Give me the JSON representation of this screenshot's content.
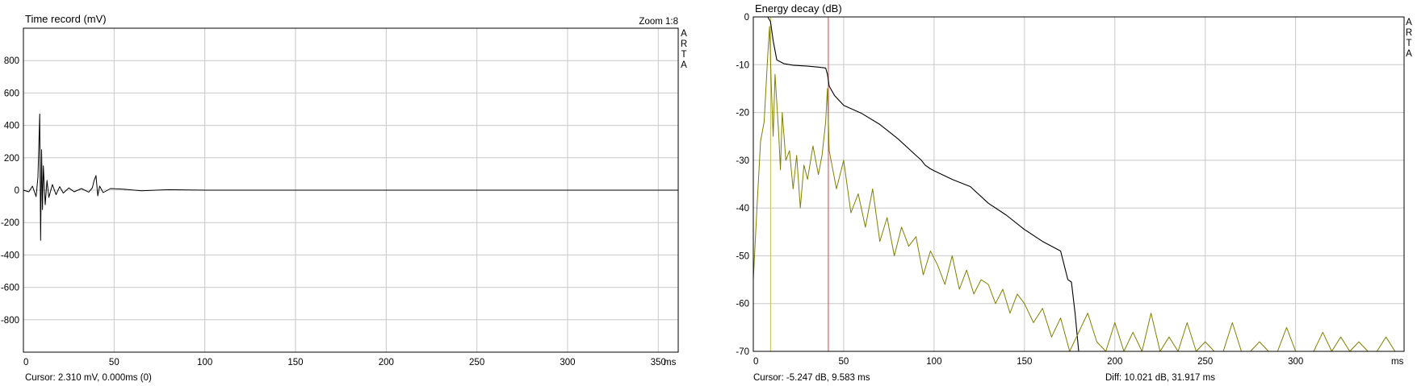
{
  "left": {
    "title": "Time record (mV)",
    "zoom": "Zoom 1:8",
    "brand": [
      "A",
      "R",
      "T",
      "A"
    ],
    "cursor": "Cursor: 2.310 mV, 0.000ms (0)",
    "x_unit": "ms",
    "colors": {
      "trace": "#000000",
      "grid": "#c8c8c8"
    }
  },
  "right": {
    "title": "Energy decay (dB)",
    "brand": [
      "A",
      "R",
      "T",
      "A"
    ],
    "cursor": "Cursor:  -5.247 dB,    9.583 ms",
    "diff": "Diff:   10.021 dB,    31.917 ms",
    "x_unit": "ms",
    "colors": {
      "decay": "#000000",
      "envelope": "#808000",
      "marker_start": "#c8c864",
      "marker_end": "#e06060",
      "grid": "#c8c8c8"
    }
  },
  "chart_data": [
    {
      "type": "line",
      "title": "Time record (mV)",
      "xlim": [
        0,
        361
      ],
      "ylim": [
        -1000,
        1000
      ],
      "x_ticks": [
        0,
        50,
        100,
        150,
        200,
        250,
        300,
        350
      ],
      "y_ticks": [
        800,
        600,
        400,
        200,
        0,
        -200,
        -400,
        -600,
        -800
      ],
      "grid": true,
      "series": [
        {
          "x": [
            0,
            3,
            5,
            7,
            8,
            9,
            9.5,
            10,
            10.5,
            11,
            12,
            13,
            14,
            16,
            18,
            20,
            22,
            25,
            28,
            32,
            36,
            38,
            39,
            40,
            41,
            42,
            44,
            48,
            55,
            65,
            80,
            100,
            150,
            361
          ],
          "values": [
            0,
            -10,
            25,
            -40,
            80,
            470,
            -310,
            250,
            -120,
            150,
            -90,
            60,
            -45,
            35,
            -28,
            22,
            -18,
            14,
            -10,
            10,
            -12,
            15,
            60,
            90,
            -35,
            25,
            -15,
            10,
            6,
            -4,
            3,
            0,
            0,
            0
          ]
        }
      ]
    },
    {
      "type": "line",
      "title": "Energy decay (dB)",
      "xlim": [
        0,
        360
      ],
      "ylim": [
        -70,
        0
      ],
      "x_ticks": [
        0,
        50,
        100,
        150,
        200,
        250,
        300
      ],
      "y_ticks": [
        0,
        -10,
        -20,
        -30,
        -40,
        -50,
        -60,
        -70
      ],
      "grid": true,
      "markers_ms": [
        9.583,
        41.5
      ],
      "series": [
        {
          "name": "decay",
          "x": [
            0,
            8,
            9.5,
            11,
            13,
            17,
            22,
            30,
            36,
            40,
            41,
            42,
            45,
            50,
            60,
            70,
            80,
            90,
            93,
            95,
            98,
            100,
            110,
            120,
            130,
            140,
            150,
            160,
            170,
            172,
            174,
            176,
            178,
            180
          ],
          "values": [
            0,
            0,
            -1,
            -5,
            -9,
            -9.8,
            -10.1,
            -10.3,
            -10.5,
            -10.7,
            -12,
            -14.5,
            -16.5,
            -18.5,
            -20.2,
            -22.5,
            -25.5,
            -29,
            -30,
            -31,
            -31.8,
            -32.2,
            -34,
            -35.5,
            -39,
            -41.5,
            -44.5,
            -47,
            -49,
            -52,
            -55,
            -55.5,
            -62,
            -70
          ]
        },
        {
          "name": "envelope",
          "x": [
            0,
            2,
            4,
            6,
            8,
            9,
            10,
            11,
            12,
            13,
            14,
            15,
            16,
            18,
            20,
            22,
            24,
            26,
            28,
            30,
            33,
            36,
            38,
            40,
            41,
            42,
            44,
            46,
            50,
            54,
            58,
            62,
            66,
            70,
            74,
            78,
            82,
            86,
            90,
            94,
            98,
            102,
            106,
            110,
            114,
            118,
            122,
            126,
            130,
            134,
            138,
            142,
            146,
            150,
            155,
            160,
            165,
            170,
            175,
            180,
            185,
            190,
            195,
            200,
            205,
            210,
            215,
            220,
            225,
            230,
            235,
            240,
            245,
            250,
            255,
            260,
            265,
            270,
            275,
            280,
            285,
            290,
            295,
            300,
            305,
            310,
            315,
            320,
            325,
            330,
            335,
            340,
            345,
            350,
            355,
            360
          ],
          "values": [
            -55,
            -40,
            -26,
            -22,
            -8,
            -2,
            -15,
            -25,
            -12,
            -18,
            -24,
            -32,
            -20,
            -30,
            -28,
            -36,
            -29,
            -40,
            -31,
            -34,
            -27,
            -33,
            -29,
            -22,
            -15,
            -28,
            -32,
            -36,
            -30,
            -41,
            -37,
            -44,
            -36,
            -47,
            -42,
            -50,
            -44,
            -48,
            -46,
            -54,
            -49,
            -52,
            -56,
            -50,
            -57,
            -53,
            -58,
            -55,
            -56,
            -60,
            -57,
            -62,
            -58,
            -60,
            -64,
            -61,
            -67,
            -63,
            -70,
            -66,
            -62,
            -68,
            -70,
            -64,
            -70,
            -66,
            -70,
            -62,
            -70,
            -67,
            -70,
            -64,
            -70,
            -68,
            -70,
            -70,
            -64,
            -70,
            -70,
            -68,
            -70,
            -70,
            -65,
            -70,
            -70,
            -70,
            -66,
            -70,
            -67,
            -70,
            -68,
            -70,
            -70,
            -67,
            -70,
            -70
          ]
        }
      ]
    }
  ]
}
